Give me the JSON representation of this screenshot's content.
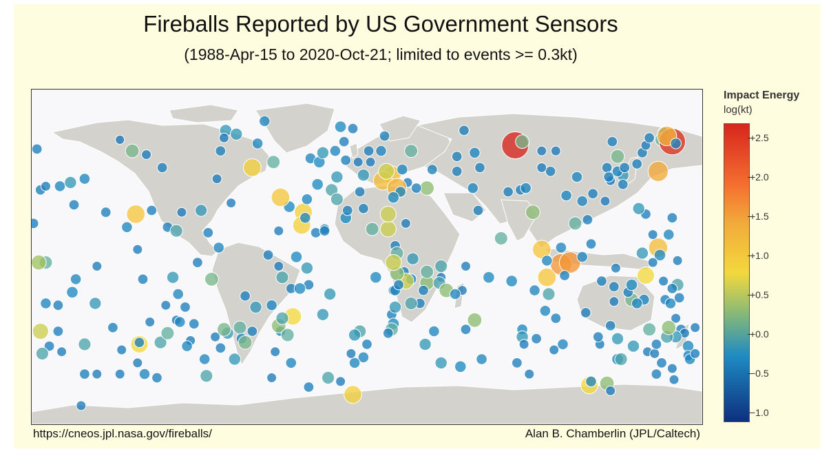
{
  "header": {
    "title": "Fireballs Reported by US Government Sensors",
    "subtitle": "(1988-Apr-15 to 2020-Oct-21; limited to events >= 0.3kt)"
  },
  "footer": {
    "source_url": "https://cneos.jpl.nasa.gov/fireballs/",
    "credit": "Alan B. Chamberlin (JPL/Caltech)"
  },
  "legend": {
    "title": "Impact Energy",
    "unit": "log(kt)",
    "ticks": [
      "+2.5",
      "+2.0",
      "+1.5",
      "+1.0",
      "+0.5",
      "+0.0",
      "−0.5",
      "−1.0"
    ]
  },
  "colors": {
    "land": "#d3d2cc",
    "ocean": "#f8f8fb",
    "border": "#ffffff"
  },
  "chart_data": {
    "type": "scatter",
    "projection": "equirectangular world map",
    "x_field": "longitude_deg",
    "y_field": "latitude_deg",
    "color_field": "log10 impact energy (kt)",
    "color_range": [
      -1.0,
      2.7
    ],
    "points": [
      [
        -177,
        58,
        -0.2
      ],
      [
        -175,
        36,
        -0.2
      ],
      [
        -179,
        18,
        -0.2
      ],
      [
        -172,
        38,
        -0.3
      ],
      [
        -164,
        38,
        -0.1
      ],
      [
        -158,
        40,
        0.1
      ],
      [
        -150,
        42,
        -0.1
      ],
      [
        -156,
        28,
        -0.2
      ],
      [
        -138,
        24,
        -0.2
      ],
      [
        -126,
        16,
        -0.1
      ],
      [
        -130,
        63,
        -0.4
      ],
      [
        -123,
        57,
        0.4
      ],
      [
        -143,
        -5,
        -0.3
      ],
      [
        -155,
        -12,
        -0.1
      ],
      [
        -157,
        -19,
        0.0
      ],
      [
        -144,
        -25,
        0.1
      ],
      [
        -172,
        -3,
        0.3
      ],
      [
        -176,
        -3,
        0.6
      ],
      [
        -172,
        -25,
        -0.1
      ],
      [
        -165,
        -26,
        -0.2
      ],
      [
        -165,
        -40,
        -0.2
      ],
      [
        -163,
        -51,
        -0.3
      ],
      [
        -175,
        -40,
        0.8
      ],
      [
        -170,
        -48,
        -0.2
      ],
      [
        -174,
        -52,
        0.2
      ],
      [
        -150,
        -63,
        -0.2
      ],
      [
        -143,
        -63,
        -0.3
      ],
      [
        -116,
        -63,
        -0.1
      ],
      [
        -130,
        -63,
        -0.3
      ],
      [
        -152,
        -80,
        -0.3
      ],
      [
        -109,
        -65,
        -0.2
      ],
      [
        -113,
        -35,
        -0.3
      ],
      [
        -104,
        -26,
        -0.3
      ],
      [
        -97,
        -20,
        -0.1
      ],
      [
        -117,
        -12,
        -0.2
      ],
      [
        -100,
        -11,
        0.1
      ],
      [
        -93,
        -27,
        -0.2
      ],
      [
        -98,
        -34,
        -0.3
      ],
      [
        -88,
        -36,
        -0.2
      ],
      [
        -76,
        -43,
        -0.3
      ],
      [
        -82,
        -55,
        -0.1
      ],
      [
        -65,
        -55,
        0.1
      ],
      [
        -73,
        -49,
        -0.2
      ],
      [
        -81,
        -64,
        0.2
      ],
      [
        -119,
        -47,
        1.0
      ],
      [
        -121,
        23,
        1.2
      ],
      [
        -112,
        25,
        -0.2
      ],
      [
        -103,
        16,
        -0.2
      ],
      [
        -98,
        14,
        0.2
      ],
      [
        -120,
        4,
        -0.3
      ],
      [
        -115,
        55,
        -0.3
      ],
      [
        -106,
        48,
        -0.2
      ],
      [
        -95,
        24,
        -0.3
      ],
      [
        -84,
        25,
        0.1
      ],
      [
        -80,
        13,
        -0.2
      ],
      [
        -78,
        -12,
        0.4
      ],
      [
        -86,
        -3,
        -0.2
      ],
      [
        -74,
        5,
        -0.1
      ],
      [
        -59,
        -21,
        -0.2
      ],
      [
        -53,
        -27,
        0.1
      ],
      [
        -44,
        -26,
        -0.1
      ],
      [
        -62,
        -38,
        0.3
      ],
      [
        -39,
        -40,
        -0.2
      ],
      [
        -55,
        -40,
        -0.2
      ],
      [
        -38,
        -11,
        0.2
      ],
      [
        -40,
        -5,
        -0.3
      ],
      [
        -33,
        -17,
        -0.2
      ],
      [
        -23,
        -15,
        -0.2
      ],
      [
        -30,
        0,
        0.0
      ],
      [
        -46,
        1,
        -0.2
      ],
      [
        -40,
        14,
        -0.3
      ],
      [
        -42,
        -51,
        -0.3
      ],
      [
        -33,
        -57,
        -0.1
      ],
      [
        -44,
        -65,
        -0.3
      ],
      [
        -12,
        -65,
        0.2
      ],
      [
        -23,
        -70,
        -0.2
      ],
      [
        -70,
        68,
        0.1
      ],
      [
        -64,
        66,
        0.1
      ],
      [
        -73,
        57,
        -0.2
      ],
      [
        -67,
        29,
        -0.3
      ],
      [
        -55,
        48,
        1.1
      ],
      [
        -75,
        42,
        -0.3
      ],
      [
        -52,
        61,
        -0.1
      ],
      [
        -48,
        73,
        -0.1
      ],
      [
        -71,
        64,
        -0.3
      ],
      [
        -43,
        51,
        0.3
      ],
      [
        -22,
        53,
        -0.1
      ],
      [
        -17,
        51,
        0.0
      ],
      [
        -15,
        56,
        0.1
      ],
      [
        -5,
        70,
        0.0
      ],
      [
        -26,
        24,
        1.1
      ],
      [
        -27,
        17,
        1.1
      ],
      [
        -24,
        31,
        -0.1
      ],
      [
        -25,
        21,
        -0.1
      ],
      [
        -34,
        27,
        0.0
      ],
      [
        -39,
        32,
        1.2
      ],
      [
        -32,
        -32,
        1.0
      ],
      [
        -15,
        -31,
        0.1
      ],
      [
        -14,
        15,
        -0.2
      ],
      [
        -19,
        13,
        -0.2
      ],
      [
        -28,
        -17,
        0.0
      ],
      [
        -24,
        -6,
        0.1
      ],
      [
        -10,
        36,
        0.2
      ],
      [
        -18,
        39,
        0.0
      ],
      [
        -11,
        -20,
        0.1
      ],
      [
        -2,
        21,
        0.0
      ],
      [
        -7,
        43,
        0.1
      ],
      [
        -3,
        62,
        -0.2
      ],
      [
        8,
        26,
        -0.2
      ],
      [
        13,
        15,
        0.3
      ],
      [
        22,
        15,
        0.8
      ],
      [
        26,
        6,
        -0.2
      ],
      [
        31,
        -8,
        -0.2
      ],
      [
        25,
        -18,
        -0.2
      ],
      [
        24,
        -31,
        -0.2
      ],
      [
        26,
        -18,
        -0.1
      ],
      [
        35,
        -12,
        -0.1
      ],
      [
        26,
        -27,
        0.1
      ],
      [
        25,
        -36,
        0.0
      ],
      [
        32,
        -13,
        0.8
      ],
      [
        44,
        -14,
        0.5
      ],
      [
        44,
        -8,
        0.3
      ],
      [
        40,
        -25,
        -0.2
      ],
      [
        52,
        -11,
        -0.3
      ],
      [
        64,
        -18,
        -0.3
      ],
      [
        51,
        -14,
        0.2
      ],
      [
        55,
        -18,
        0.5
      ],
      [
        52,
        -5,
        0.2
      ],
      [
        48,
        -40,
        -0.1
      ],
      [
        52,
        -57,
        0.1
      ],
      [
        66,
        -39,
        -0.2
      ],
      [
        75,
        -55,
        -0.1
      ],
      [
        63,
        -59,
        0.0
      ],
      [
        43,
        -47,
        0.1
      ],
      [
        24,
        -39,
        0.3
      ],
      [
        6,
        -40,
        0.2
      ],
      [
        3,
        -42,
        0.1
      ],
      [
        8,
        -54,
        -0.1
      ],
      [
        -5,
        -67,
        -0.3
      ],
      [
        2,
        -74,
        1.1
      ],
      [
        3,
        -57,
        -0.1
      ],
      [
        1,
        -52,
        -0.3
      ],
      [
        10,
        -47,
        -0.2
      ],
      [
        22,
        -41,
        -0.2
      ],
      [
        8,
        44,
        0.1
      ],
      [
        24,
        44,
        1.2
      ],
      [
        19,
        41,
        1.3
      ],
      [
        33,
        40,
        -0.3
      ],
      [
        27,
        37,
        1.4
      ],
      [
        36,
        -1,
        0.1
      ],
      [
        15,
        -11,
        0.0
      ],
      [
        35,
        -25,
        0.2
      ],
      [
        21,
        46,
        0.8
      ],
      [
        29,
        35,
        -0.1
      ],
      [
        25,
        32,
        0.0
      ],
      [
        35,
        57,
        0.3
      ],
      [
        32,
        18,
        -0.3
      ],
      [
        22,
        23,
        0.8
      ],
      [
        27,
        2,
        0.3
      ],
      [
        27,
        -9,
        0.5
      ],
      [
        25,
        -3,
        0.8
      ],
      [
        28,
        -15,
        -0.2
      ],
      [
        42,
        -18,
        -0.2
      ],
      [
        60,
        -20,
        -0.1
      ],
      [
        71,
        -34,
        0.5
      ],
      [
        66,
        -5,
        -0.3
      ],
      [
        97,
        36,
        -0.2
      ],
      [
        92,
        -13,
        0.0
      ],
      [
        98,
        -39,
        -0.1
      ],
      [
        98,
        -43,
        0.1
      ],
      [
        95,
        -57,
        -0.2
      ],
      [
        102,
        -63,
        -0.3
      ],
      [
        99,
        -47,
        -0.3
      ],
      [
        106,
        -44,
        -0.2
      ],
      [
        116,
        -50,
        -0.3
      ],
      [
        121,
        -47,
        -0.1
      ],
      [
        136,
        -69,
        1.0
      ],
      [
        137,
        -67,
        -0.1
      ],
      [
        146,
        -68,
        0.5
      ],
      [
        148,
        -72,
        -0.3
      ],
      [
        148,
        -37,
        -0.2
      ],
      [
        142,
        -47,
        -0.3
      ],
      [
        152,
        -55,
        0.0
      ],
      [
        154,
        -55,
        0.2
      ],
      [
        161,
        -48,
        0.1
      ],
      [
        169,
        -51,
        -0.3
      ],
      [
        174,
        -63,
        -0.2
      ],
      [
        173,
        -52,
        -0.3
      ],
      [
        177,
        -57,
        -0.2
      ],
      [
        184,
        -66,
        -0.3
      ],
      [
        183,
        -60,
        -0.3
      ],
      [
        185,
        -33,
        -0.3
      ],
      [
        179,
        -23,
        -0.2
      ],
      [
        167,
        -23,
        -0.1
      ],
      [
        160,
        -23,
        0.4
      ],
      [
        150,
        -24,
        -0.3
      ],
      [
        143,
        -13,
        -0.2
      ],
      [
        134,
        -30,
        -0.2
      ],
      [
        117,
        -33,
        -0.2
      ],
      [
        111,
        -29,
        -0.1
      ],
      [
        113,
        -20,
        0.2
      ],
      [
        112,
        -11,
        1.2
      ],
      [
        120,
        -4,
        1.7
      ],
      [
        125,
        -3,
        1.7
      ],
      [
        105,
        -18,
        -0.1
      ],
      [
        79,
        -11,
        0.0
      ],
      [
        73,
        25,
        -0.2
      ],
      [
        86,
        10,
        0.3
      ],
      [
        90,
        35,
        -0.2
      ],
      [
        100,
        37,
        -0.1
      ],
      [
        104,
        24,
        0.5
      ],
      [
        109,
        4,
        1.2
      ],
      [
        120,
        5,
        -0.1
      ],
      [
        122,
        -10,
        -0.2
      ],
      [
        112,
        -2,
        -0.1
      ],
      [
        132,
        0,
        -0.1
      ],
      [
        151,
        -6,
        -0.3
      ],
      [
        150,
        -16,
        -0.2
      ],
      [
        158,
        -19,
        -0.2
      ],
      [
        160,
        -15,
        0.0
      ],
      [
        163,
        -25,
        -0.1
      ],
      [
        168,
        -10,
        1.0
      ],
      [
        175,
        5,
        1.3
      ],
      [
        176,
        1,
        0.0
      ],
      [
        172,
        -3,
        -0.3
      ],
      [
        178,
        -13,
        -0.3
      ],
      [
        166,
        2,
        0.1
      ],
      [
        172,
        12,
        -0.3
      ],
      [
        168,
        23,
        -0.2
      ],
      [
        164,
        26,
        0.1
      ],
      [
        181,
        12,
        -0.1
      ],
      [
        183,
        21,
        -0.2
      ],
      [
        186,
        -2,
        -0.3
      ],
      [
        186,
        -15,
        0.2
      ],
      [
        182,
        -25,
        -0.1
      ],
      [
        183,
        -17,
        -0.2
      ],
      [
        187,
        -22,
        -0.2
      ],
      [
        188,
        -39,
        -0.2
      ],
      [
        190,
        -41,
        -0.3
      ],
      [
        192,
        -48,
        0.0
      ],
      [
        192,
        -53,
        -0.2
      ],
      [
        193,
        -55,
        -0.1
      ],
      [
        196,
        -52,
        -0.3
      ],
      [
        196,
        -38,
        -0.3
      ],
      [
        174,
        -47,
        -0.2
      ],
      [
        185,
        -43,
        0.1
      ],
      [
        180,
        -43,
        0.2
      ],
      [
        181,
        -38,
        0.5
      ],
      [
        170,
        -39,
        0.3
      ],
      [
        152,
        -44,
        0.1
      ],
      [
        141,
        -43,
        -0.2
      ],
      [
        135,
        20,
        -0.2
      ],
      [
        123,
        33,
        -0.1
      ],
      [
        128,
        18,
        0.3
      ],
      [
        137,
        7,
        -0.2
      ],
      [
        129,
        43,
        -0.1
      ],
      [
        132,
        30,
        -0.1
      ],
      [
        138,
        34,
        -0.2
      ],
      [
        145,
        30,
        -0.3
      ],
      [
        155,
        44,
        0.1
      ],
      [
        146,
        48,
        -0.2
      ],
      [
        152,
        54,
        0.4
      ],
      [
        149,
        62,
        -0.2
      ],
      [
        178,
        67,
        -0.1
      ],
      [
        148,
        41,
        -0.3
      ],
      [
        147,
        43,
        -0.2
      ],
      [
        152,
        46,
        -0.1
      ],
      [
        156,
        48,
        -0.2
      ],
      [
        155,
        39,
        -0.2
      ],
      [
        163,
        50,
        -0.2
      ],
      [
        166,
        56,
        -0.2
      ],
      [
        168,
        60,
        -0.3
      ],
      [
        170,
        64,
        -0.2
      ],
      [
        177,
        63,
        0.3
      ],
      [
        183,
        62,
        2.6
      ],
      [
        180,
        65,
        1.4
      ],
      [
        175,
        46,
        1.5
      ],
      [
        185,
        61,
        -0.1
      ],
      [
        117,
        57,
        -0.3
      ],
      [
        114,
        46,
        -0.2
      ],
      [
        94,
        60,
        2.7
      ],
      [
        98,
        62,
        0.4
      ],
      [
        109,
        48,
        -0.3
      ],
      [
        109,
        57,
        -0.3
      ],
      [
        65,
        68,
        -0.2
      ],
      [
        61,
        54,
        -0.2
      ],
      [
        71,
        56,
        -0.1
      ],
      [
        74,
        48,
        -0.2
      ],
      [
        61,
        46,
        -0.2
      ],
      [
        70,
        37,
        -0.1
      ],
      [
        47,
        47,
        -0.2
      ],
      [
        44,
        37,
        0.5
      ],
      [
        38,
        37,
        -0.2
      ],
      [
        30,
        47,
        -0.1
      ],
      [
        12,
        51,
        -0.3
      ],
      [
        11,
        57,
        -0.2
      ],
      [
        2,
        69,
        -0.2
      ],
      [
        5,
        51,
        -0.3
      ],
      [
        18,
        57,
        -0.1
      ],
      [
        20,
        65,
        -0.2
      ],
      [
        -2,
        52,
        -0.2
      ],
      [
        -8,
        57,
        -0.1
      ],
      [
        -14,
        14,
        -0.2
      ],
      [
        -1,
        25,
        -0.2
      ],
      [
        6,
        35,
        -0.2
      ],
      [
        -7,
        31,
        0.2
      ],
      [
        -120,
        -57,
        -0.3
      ],
      [
        -119,
        -46,
        -0.2
      ],
      [
        -134,
        -38,
        -0.2
      ],
      [
        -129,
        -50,
        -0.3
      ],
      [
        -150,
        -47,
        0.2
      ],
      [
        -107,
        -46,
        0.2
      ],
      [
        -103,
        -41,
        0.3
      ],
      [
        -90,
        -45,
        -0.3
      ],
      [
        -96,
        -35,
        -0.1
      ],
      [
        -92,
        -48,
        -0.1
      ],
      [
        -69,
        -41,
        0.1
      ],
      [
        -71,
        -39,
        0.4
      ],
      [
        -61,
        -44,
        -0.1
      ],
      [
        -59,
        -46,
        0.4
      ],
      [
        -40,
        -37,
        0.5
      ],
      [
        -35,
        -42,
        0.3
      ],
      [
        -38,
        -33,
        0.2
      ]
    ]
  }
}
